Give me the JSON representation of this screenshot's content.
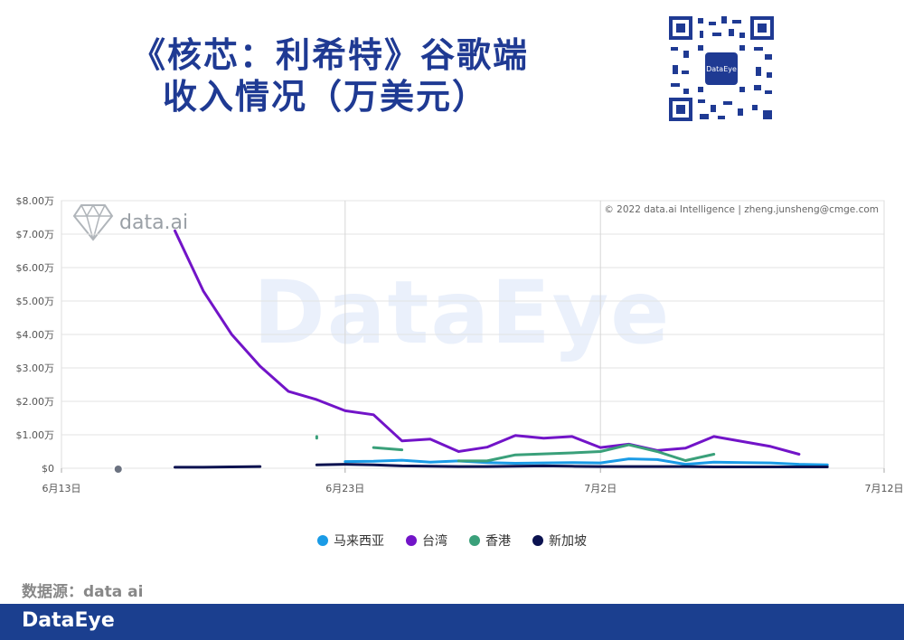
{
  "header": {
    "title_line1": "《核芯：利希特》谷歌端",
    "title_line2": "收入情况（万美元）"
  },
  "watermark": {
    "brand": "data.ai",
    "copyright": "© 2022 data.ai Intelligence | zheng.junsheng@cmge.com",
    "big": "DataEye",
    "qr_center": "DataEye"
  },
  "source": "数据源：data ai",
  "footer": {
    "logo": "DataEye"
  },
  "chart_data": {
    "type": "line",
    "xlabel": "",
    "ylabel": "",
    "x_ticks": [
      "6月13日",
      "6月23日",
      "7月2日",
      "7月12日"
    ],
    "y_ticks": [
      "$0",
      "$1.00万",
      "$2.00万",
      "$3.00万",
      "$4.00万",
      "$5.00万",
      "$6.00万",
      "$7.00万",
      "$8.00万"
    ],
    "ylim": [
      0,
      8
    ],
    "grid": true,
    "legend_position": "bottom",
    "series": [
      {
        "name": "马来西亚",
        "color": "#1a9be6",
        "points": [
          [
            10,
            0.2
          ],
          [
            11,
            0.21
          ],
          [
            12,
            0.24
          ],
          [
            13,
            0.18
          ],
          [
            14,
            0.22
          ],
          [
            15,
            0.17
          ],
          [
            16,
            0.15
          ],
          [
            17,
            0.16
          ],
          [
            18,
            0.17
          ],
          [
            19,
            0.16
          ],
          [
            20,
            0.28
          ],
          [
            21,
            0.26
          ],
          [
            22,
            0.12
          ],
          [
            23,
            0.18
          ],
          [
            24,
            0.17
          ],
          [
            25,
            0.16
          ],
          [
            26,
            0.12
          ],
          [
            27,
            0.1
          ]
        ]
      },
      {
        "name": "台湾",
        "color": "#7214c8",
        "points": [
          [
            4,
            7.1
          ],
          [
            5,
            5.3
          ],
          [
            6,
            4.0
          ],
          [
            7,
            3.05
          ],
          [
            8,
            2.3
          ],
          [
            9,
            2.05
          ],
          [
            10,
            1.72
          ],
          [
            11,
            1.6
          ],
          [
            12,
            0.82
          ],
          [
            13,
            0.87
          ],
          [
            14,
            0.5
          ],
          [
            15,
            0.63
          ],
          [
            16,
            0.98
          ],
          [
            17,
            0.9
          ],
          [
            18,
            0.95
          ],
          [
            19,
            0.62
          ],
          [
            20,
            0.72
          ],
          [
            21,
            0.53
          ],
          [
            22,
            0.6
          ],
          [
            23,
            0.95
          ],
          [
            24,
            0.8
          ],
          [
            25,
            0.65
          ],
          [
            26,
            0.42
          ]
        ]
      },
      {
        "name": "香港",
        "color": "#3aa07a",
        "segments": [
          [
            [
              9,
              0.95
            ],
            [
              9,
              0.9
            ]
          ],
          [
            [
              11,
              0.62
            ],
            [
              12,
              0.55
            ]
          ],
          [
            [
              14,
              0.22
            ],
            [
              15,
              0.22
            ],
            [
              16,
              0.4
            ],
            [
              17,
              0.43
            ],
            [
              18,
              0.46
            ],
            [
              19,
              0.5
            ],
            [
              20,
              0.7
            ],
            [
              21,
              0.5
            ],
            [
              22,
              0.23
            ],
            [
              23,
              0.42
            ]
          ]
        ]
      },
      {
        "name": "新加坡",
        "color": "#0b1250",
        "segments": [
          [
            [
              4,
              0.03
            ],
            [
              5,
              0.03
            ],
            [
              6,
              0.04
            ],
            [
              7,
              0.05
            ]
          ],
          [
            [
              9,
              0.1
            ],
            [
              10,
              0.12
            ],
            [
              11,
              0.1
            ],
            [
              12,
              0.07
            ],
            [
              13,
              0.06
            ],
            [
              14,
              0.05
            ],
            [
              15,
              0.05
            ],
            [
              16,
              0.06
            ],
            [
              17,
              0.07
            ],
            [
              18,
              0.06
            ],
            [
              19,
              0.05
            ],
            [
              20,
              0.05
            ],
            [
              21,
              0.05
            ],
            [
              22,
              0.05
            ],
            [
              23,
              0.04
            ],
            [
              24,
              0.04
            ],
            [
              25,
              0.04
            ],
            [
              26,
              0.04
            ],
            [
              27,
              0.04
            ]
          ]
        ]
      }
    ],
    "x_range_index": [
      0,
      29
    ],
    "x_tick_index": [
      0,
      10,
      19,
      29
    ]
  }
}
